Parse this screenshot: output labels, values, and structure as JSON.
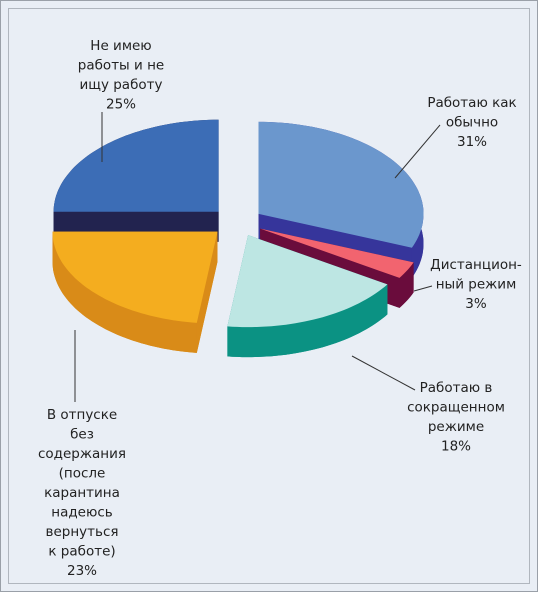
{
  "chart_data": {
    "type": "pie3d",
    "categories": [
      [
        "Работаю как",
        "обычно"
      ],
      [
        "Дистанцион-",
        "ный режим"
      ],
      [
        "Работаю в",
        "сокращенном",
        "режиме"
      ],
      [
        "В отпуске",
        "без",
        "содержания",
        "(после",
        "карантина",
        "надеюсь",
        "вернуться",
        "к работе)"
      ],
      [
        "Не имею",
        "работы и не",
        "ищу работу"
      ]
    ],
    "values": [
      31,
      3,
      18,
      23,
      25
    ],
    "value_labels": [
      "31%",
      "3%",
      "18%",
      "23%",
      "25%"
    ],
    "colors": [
      "#6b97cd",
      "#f2646f",
      "#bde6e3",
      "#f4ad1f",
      "#3c6db6"
    ],
    "side_colors": [
      "#36359b",
      "#6a0c3c",
      "#0b9283",
      "#d98b18",
      "#22234f"
    ]
  }
}
